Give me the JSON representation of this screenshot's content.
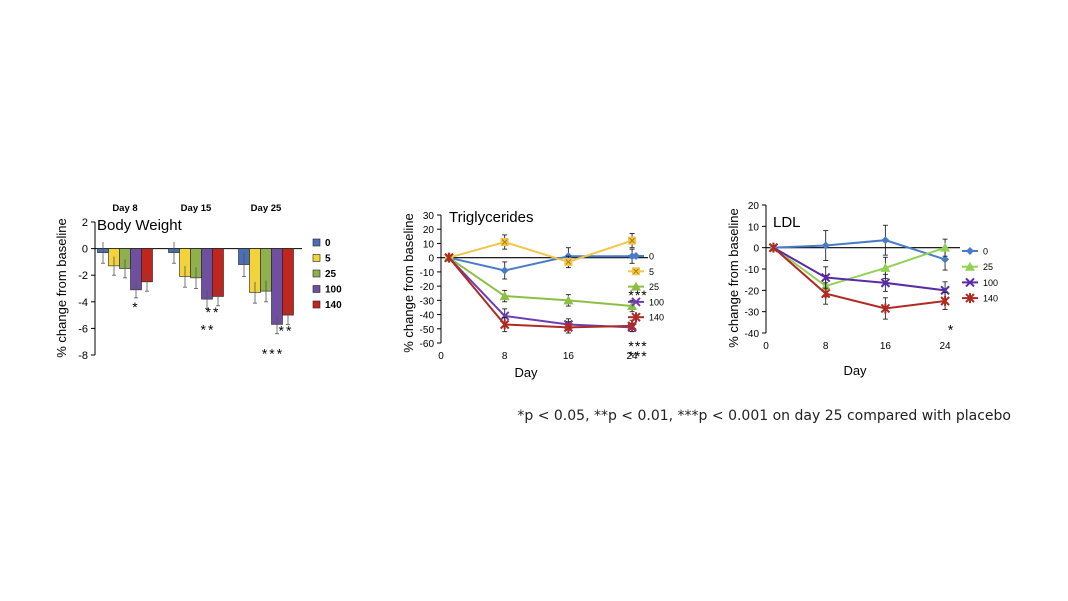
{
  "chart_data": [
    {
      "type": "bar",
      "title": "Body Weight",
      "xlabel": "",
      "ylabel": "% change from baseline",
      "categories": [
        "Day 8",
        "Day 15",
        "Day 25"
      ],
      "ylim": [
        -8,
        2
      ],
      "yticks": [
        2,
        0,
        -2,
        -4,
        -6,
        -8
      ],
      "legend_position": "right",
      "series": [
        {
          "name": "0",
          "color": "#4a6fb5",
          "values": [
            -0.3,
            -0.3,
            -1.2
          ],
          "err": [
            0.8,
            0.8,
            0.9
          ]
        },
        {
          "name": "5",
          "color": "#f2d33c",
          "values": [
            -1.3,
            -2.1,
            -3.3
          ],
          "err": [
            0.7,
            0.8,
            0.8
          ]
        },
        {
          "name": "25",
          "color": "#8fb04c",
          "values": [
            -1.5,
            -2.2,
            -3.2
          ],
          "err": [
            0.7,
            0.8,
            0.8
          ]
        },
        {
          "name": "100",
          "color": "#6f4fa0",
          "values": [
            -3.1,
            -3.8,
            -5.7
          ],
          "err": [
            0.6,
            0.7,
            0.7
          ]
        },
        {
          "name": "140",
          "color": "#c0261e",
          "values": [
            -2.5,
            -3.6,
            -5.0
          ],
          "err": [
            0.7,
            0.7,
            0.7
          ]
        }
      ],
      "annotations": [
        {
          "category": 0,
          "series": 3,
          "text": "*"
        },
        {
          "category": 1,
          "series": 3,
          "text": "**"
        },
        {
          "category": 1,
          "series": 4,
          "text": "**"
        },
        {
          "category": 2,
          "series": 3,
          "text": "***"
        },
        {
          "category": 2,
          "series": 4,
          "text": "**"
        }
      ]
    },
    {
      "type": "line",
      "title": "Triglycerides",
      "xlabel": "Day",
      "ylabel": "% change from baseline",
      "x": [
        1,
        8,
        16,
        24
      ],
      "xticks": [
        0,
        8,
        16,
        24
      ],
      "xlim": [
        0,
        26
      ],
      "ylim": [
        -60,
        30
      ],
      "yticks": [
        30,
        20,
        10,
        0,
        -10,
        -20,
        -30,
        -40,
        -50,
        -60
      ],
      "legend_position": "right",
      "series": [
        {
          "name": "0",
          "color": "#4a7bc8",
          "marker": "diamond",
          "values": [
            0,
            -9,
            1,
            1
          ],
          "err": [
            0,
            6,
            6,
            5
          ]
        },
        {
          "name": "5",
          "color": "#f2c64c",
          "marker": "square-x",
          "values": [
            0,
            11,
            -3,
            12
          ],
          "err": [
            0,
            5,
            4,
            5
          ]
        },
        {
          "name": "25",
          "color": "#8dbf47",
          "marker": "triangle",
          "values": [
            0,
            -27,
            -30,
            -34
          ],
          "err": [
            0,
            4,
            4,
            4
          ]
        },
        {
          "name": "100",
          "color": "#6a3fb0",
          "marker": "x",
          "values": [
            0,
            -41,
            -47,
            -49
          ],
          "err": [
            0,
            5,
            4,
            3
          ]
        },
        {
          "name": "140",
          "color": "#b02a24",
          "marker": "star",
          "values": [
            0,
            -47,
            -49,
            -48
          ],
          "err": [
            0,
            5,
            4,
            4
          ]
        }
      ],
      "annotations": [
        {
          "x": 24,
          "y": -24,
          "text": "***"
        },
        {
          "x": 24,
          "y": -60,
          "text": "***"
        },
        {
          "x": 24,
          "y": -67,
          "text": "***"
        }
      ]
    },
    {
      "type": "line",
      "title": "LDL",
      "xlabel": "Day",
      "ylabel": "% change from baseline",
      "x": [
        1,
        8,
        16,
        24
      ],
      "xticks": [
        0,
        8,
        16,
        24
      ],
      "xlim": [
        0,
        26
      ],
      "ylim": [
        -40,
        20
      ],
      "yticks": [
        20,
        10,
        0,
        -10,
        -20,
        -30,
        -40
      ],
      "legend_position": "right",
      "series": [
        {
          "name": "0",
          "color": "#4a7bc8",
          "marker": "diamond",
          "values": [
            0,
            1,
            3.5,
            -5.5
          ],
          "err": [
            0,
            7,
            7,
            5
          ]
        },
        {
          "name": "25",
          "color": "#93d156",
          "marker": "triangle",
          "values": [
            0,
            -18,
            -9.5,
            0
          ],
          "err": [
            0,
            5,
            5,
            4
          ]
        },
        {
          "name": "100",
          "color": "#5a2aa8",
          "marker": "x",
          "values": [
            0,
            -14,
            -16.5,
            -20
          ],
          "err": [
            0,
            5,
            4,
            4
          ]
        },
        {
          "name": "140",
          "color": "#b02a24",
          "marker": "star",
          "values": [
            0,
            -21.5,
            -28.5,
            -25
          ],
          "err": [
            0,
            5,
            5,
            4
          ]
        }
      ],
      "annotations": [
        {
          "x": 24,
          "y": -37,
          "text": "*"
        }
      ]
    }
  ],
  "footnote": "*p < 0.05, **p < 0.01, ***p < 0.001 on day 25 compared with placebo"
}
